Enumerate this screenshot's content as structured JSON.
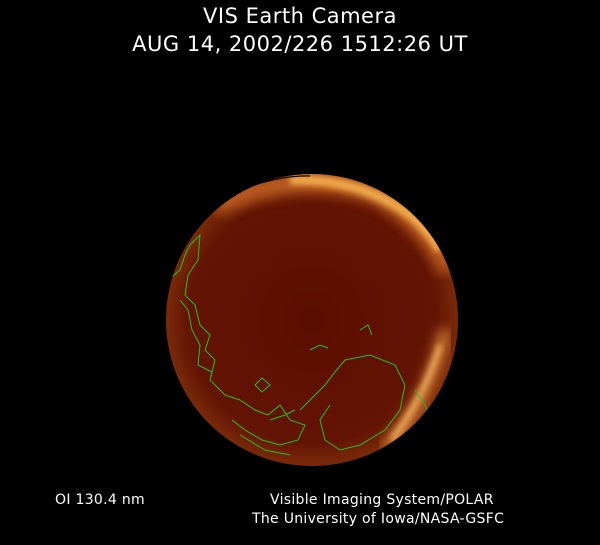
{
  "header": {
    "title": "VIS Earth Camera",
    "timestamp": "AUG 14, 2002/226 1512:26 UT"
  },
  "footer": {
    "band": "OI  130.4 nm",
    "instrument": "Visible Imaging System/POLAR",
    "institution": "The University of Iowa/NASA-GSFC"
  },
  "colors": {
    "background": "#000000",
    "earth_disk": "#5a0e02",
    "aurora": "#f0a040",
    "coastline": "#22c022",
    "terminator": "#000000"
  }
}
